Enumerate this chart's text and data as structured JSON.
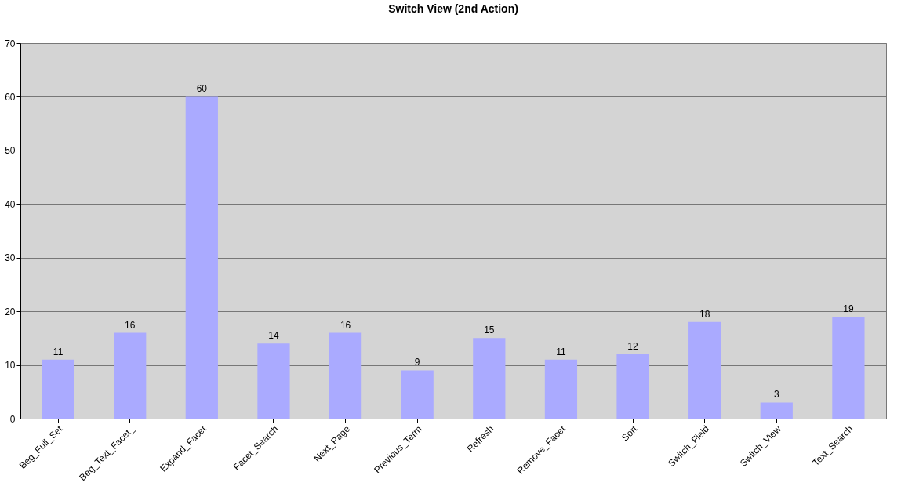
{
  "chart_data": {
    "type": "bar",
    "title": "Switch View (2nd Action)",
    "categories": [
      "Beg_Full_Set",
      "Beg_Text_Facet_",
      "Expand_Facet",
      "Facet_Search",
      "Next_Page",
      "Previous_Term",
      "Refresh",
      "Remove_Facet",
      "Sort",
      "Switch_Field",
      "Switch_View",
      "Text_Search"
    ],
    "values": [
      11,
      16,
      60,
      14,
      16,
      9,
      15,
      11,
      12,
      18,
      3,
      19
    ],
    "color": "#aaaaff",
    "ylim": [
      0,
      70
    ],
    "yticks": [
      0,
      10,
      20,
      30,
      40,
      50,
      60,
      70
    ],
    "grid": "y",
    "data_labels": true
  }
}
